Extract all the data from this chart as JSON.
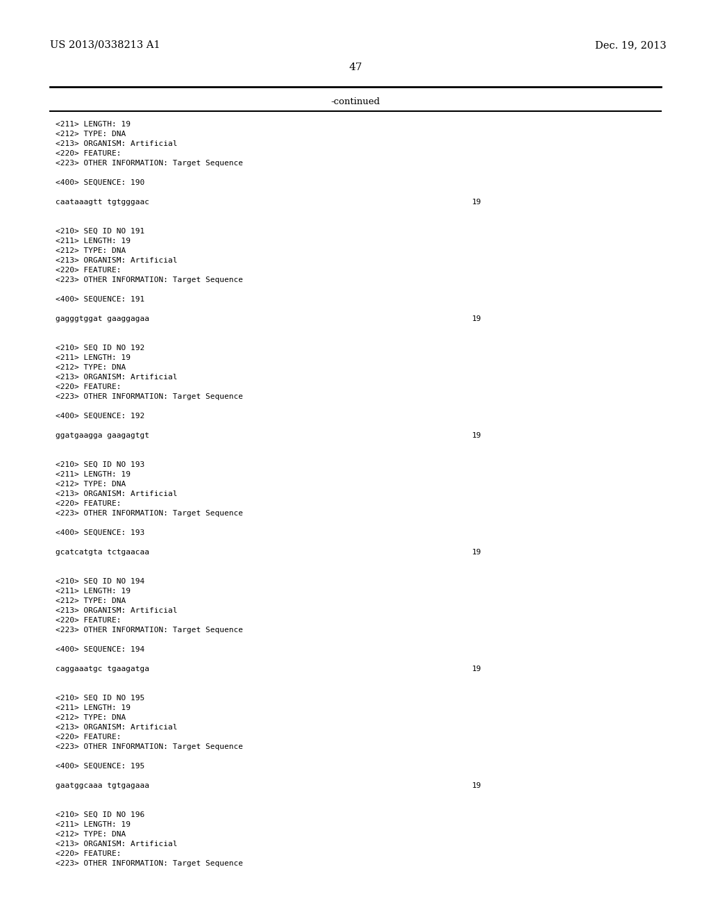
{
  "background_color": "#ffffff",
  "header_left": "US 2013/0338213 A1",
  "header_right": "Dec. 19, 2013",
  "page_number": "47",
  "continued_label": "-continued",
  "line_color": "#000000",
  "header_fontsize": 10.5,
  "page_num_fontsize": 11,
  "continued_fontsize": 9.5,
  "body_fontsize": 8.0,
  "entries": [
    {
      "seq_id_line": "",
      "meta": [
        "<211> LENGTH: 19",
        "<212> TYPE: DNA",
        "<213> ORGANISM: Artificial",
        "<220> FEATURE:",
        "<223> OTHER INFORMATION: Target Sequence"
      ],
      "sequence_label": "<400> SEQUENCE: 190",
      "sequence": "caataaagtt tgtgggaac",
      "seq_length": "19"
    },
    {
      "seq_id_line": "<210> SEQ ID NO 191",
      "meta": [
        "<211> LENGTH: 19",
        "<212> TYPE: DNA",
        "<213> ORGANISM: Artificial",
        "<220> FEATURE:",
        "<223> OTHER INFORMATION: Target Sequence"
      ],
      "sequence_label": "<400> SEQUENCE: 191",
      "sequence": "gagggtggat gaaggagaa",
      "seq_length": "19"
    },
    {
      "seq_id_line": "<210> SEQ ID NO 192",
      "meta": [
        "<211> LENGTH: 19",
        "<212> TYPE: DNA",
        "<213> ORGANISM: Artificial",
        "<220> FEATURE:",
        "<223> OTHER INFORMATION: Target Sequence"
      ],
      "sequence_label": "<400> SEQUENCE: 192",
      "sequence": "ggatgaagga gaagagtgt",
      "seq_length": "19"
    },
    {
      "seq_id_line": "<210> SEQ ID NO 193",
      "meta": [
        "<211> LENGTH: 19",
        "<212> TYPE: DNA",
        "<213> ORGANISM: Artificial",
        "<220> FEATURE:",
        "<223> OTHER INFORMATION: Target Sequence"
      ],
      "sequence_label": "<400> SEQUENCE: 193",
      "sequence": "gcatcatgta tctgaacaa",
      "seq_length": "19"
    },
    {
      "seq_id_line": "<210> SEQ ID NO 194",
      "meta": [
        "<211> LENGTH: 19",
        "<212> TYPE: DNA",
        "<213> ORGANISM: Artificial",
        "<220> FEATURE:",
        "<223> OTHER INFORMATION: Target Sequence"
      ],
      "sequence_label": "<400> SEQUENCE: 194",
      "sequence": "caggaaatgc tgaagatga",
      "seq_length": "19"
    },
    {
      "seq_id_line": "<210> SEQ ID NO 195",
      "meta": [
        "<211> LENGTH: 19",
        "<212> TYPE: DNA",
        "<213> ORGANISM: Artificial",
        "<220> FEATURE:",
        "<223> OTHER INFORMATION: Target Sequence"
      ],
      "sequence_label": "<400> SEQUENCE: 195",
      "sequence": "gaatggcaaa tgtgagaaa",
      "seq_length": "19"
    },
    {
      "seq_id_line": "<210> SEQ ID NO 196",
      "meta": [
        "<211> LENGTH: 19",
        "<212> TYPE: DNA",
        "<213> ORGANISM: Artificial",
        "<220> FEATURE:",
        "<223> OTHER INFORMATION: Target Sequence"
      ],
      "sequence_label": "",
      "sequence": "",
      "seq_length": ""
    }
  ]
}
